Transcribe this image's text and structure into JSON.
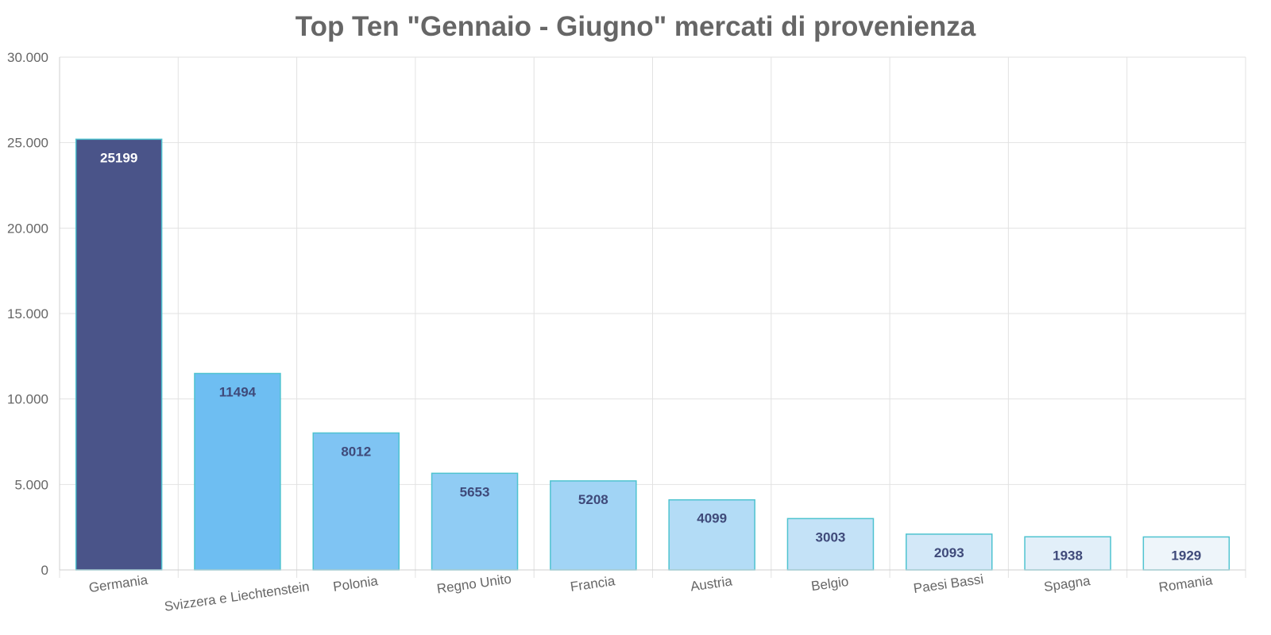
{
  "chart_data": {
    "type": "bar",
    "title": "Top Ten \"Gennaio - Giugno\" mercati di provenienza",
    "xlabel": "",
    "ylabel": "",
    "ylim": [
      0,
      30000
    ],
    "y_ticks": [
      0,
      5000,
      10000,
      15000,
      20000,
      25000,
      30000
    ],
    "y_tick_labels": [
      "0",
      "5.000",
      "10.000",
      "15.000",
      "20.000",
      "25.000",
      "30.000"
    ],
    "grid": true,
    "legend": "none",
    "categories": [
      "Germania",
      "Svizzera e Liechtenstein",
      "Polonia",
      "Regno Unito",
      "Francia",
      "Austria",
      "Belgio",
      "Paesi Bassi",
      "Spagna",
      "Romania"
    ],
    "values": [
      25199,
      11494,
      8012,
      5653,
      5208,
      4099,
      3003,
      2093,
      1938,
      1929
    ],
    "data_labels": [
      "25199",
      "11494",
      "8012",
      "5653",
      "5208",
      "4099",
      "3003",
      "2093",
      "1938",
      "1929"
    ],
    "bar_colors": [
      "#4a5489",
      "#6ebef2",
      "#7fc4f3",
      "#90ccf4",
      "#a1d4f5",
      "#b3dcf6",
      "#c4e2f7",
      "#d3e8f8",
      "#e2eff9",
      "#eef5fa"
    ],
    "bar_border_color": "#4fc3d0",
    "label_colors": [
      "#ffffff",
      "#3f4a7a",
      "#3f4a7a",
      "#3f4a7a",
      "#3f4a7a",
      "#3f4a7a",
      "#3f4a7a",
      "#3f4a7a",
      "#3f4a7a",
      "#3f4a7a"
    ]
  }
}
